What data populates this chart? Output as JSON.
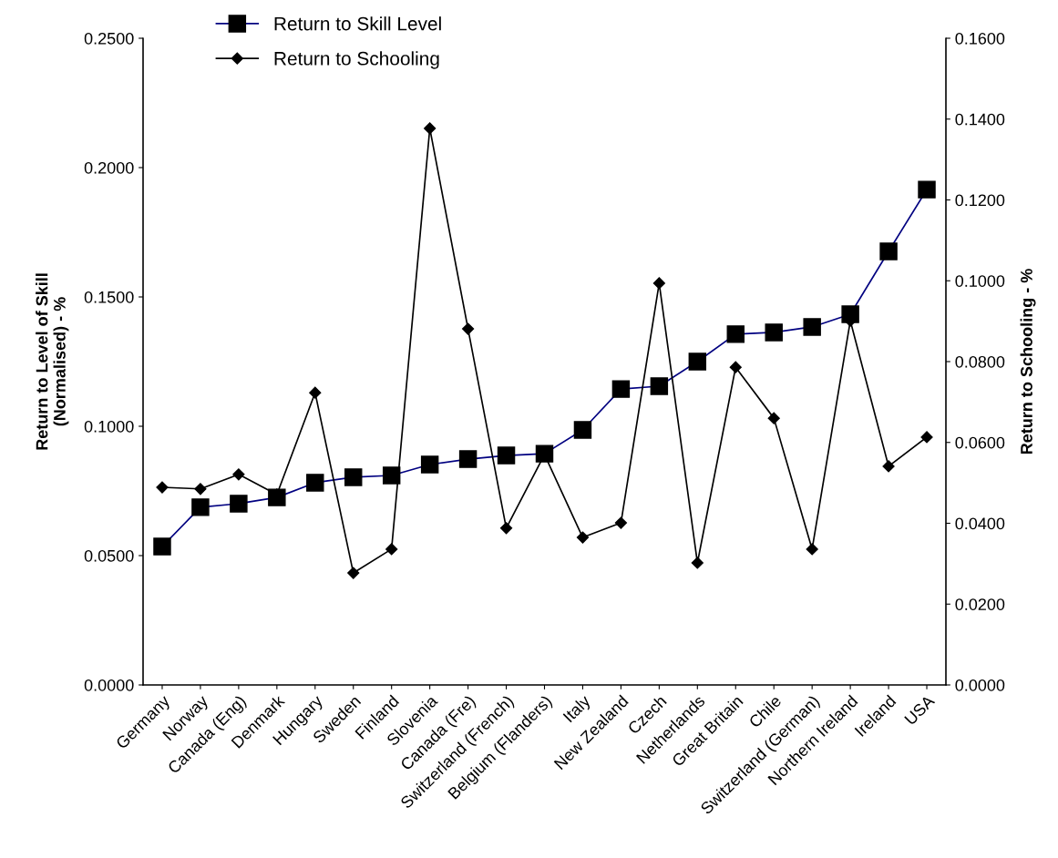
{
  "chart_data": {
    "type": "line",
    "categories": [
      "Germany",
      "Norway",
      "Canada (Eng)",
      "Denmark",
      "Hungary",
      "Sweden",
      "Finland",
      "Slovenia",
      "Canada (Fre)",
      "Switzerland (French)",
      "Belgium (Flanders)",
      "Italy",
      "New Zealand",
      "Czech",
      "Netherlands",
      "Great Britain",
      "Chile",
      "Switzerland (German)",
      "Northern Ireland",
      "Ireland",
      "USA"
    ],
    "ylabel": "Return to Level of Skill\n(Normalised) - %",
    "y2label": "Return to Schooling - %",
    "series": [
      {
        "name": "Return to Skill Level",
        "color": "#000080",
        "marker": "square",
        "values": [
          0.0535,
          0.0687,
          0.0701,
          0.0725,
          0.0782,
          0.0803,
          0.081,
          0.0852,
          0.0873,
          0.0887,
          0.0894,
          0.0986,
          0.1144,
          0.1155,
          0.125,
          0.1356,
          0.1363,
          0.1384,
          0.1433,
          0.1676,
          0.1915
        ]
      },
      {
        "name": "Return to Schooling",
        "color": "#000000",
        "marker": "diamond",
        "axis": "y2",
        "values": [
          0.0489,
          0.0485,
          0.0521,
          0.0471,
          0.0723,
          0.0277,
          0.0336,
          0.1377,
          0.0881,
          0.0388,
          0.057,
          0.0365,
          0.0401,
          0.0994,
          0.0302,
          0.0786,
          0.066,
          0.0336,
          0.0901,
          0.0541,
          0.0613
        ]
      }
    ],
    "ylim": [
      0,
      0.25
    ],
    "yticks": [
      {
        "value": 0,
        "label": "0.0000"
      },
      {
        "value": 0.05,
        "label": "0.0500"
      },
      {
        "value": 0.1,
        "label": "0.1000"
      },
      {
        "value": 0.15,
        "label": "0.1500"
      },
      {
        "value": 0.2,
        "label": "0.2000"
      },
      {
        "value": 0.25,
        "label": "0.2500"
      }
    ],
    "y2lim": [
      0,
      0.16
    ],
    "y2ticks": [
      {
        "value": 0,
        "label": "0.0000"
      },
      {
        "value": 0.02,
        "label": "0.0200"
      },
      {
        "value": 0.04,
        "label": "0.0400"
      },
      {
        "value": 0.06,
        "label": "0.0600"
      },
      {
        "value": 0.08,
        "label": "0.0800"
      },
      {
        "value": 0.1,
        "label": "0.1000"
      },
      {
        "value": 0.12,
        "label": "0.1200"
      },
      {
        "value": 0.14,
        "label": "0.1400"
      },
      {
        "value": 0.16,
        "label": "0.1600"
      }
    ],
    "grid": false,
    "legend": "top left"
  }
}
